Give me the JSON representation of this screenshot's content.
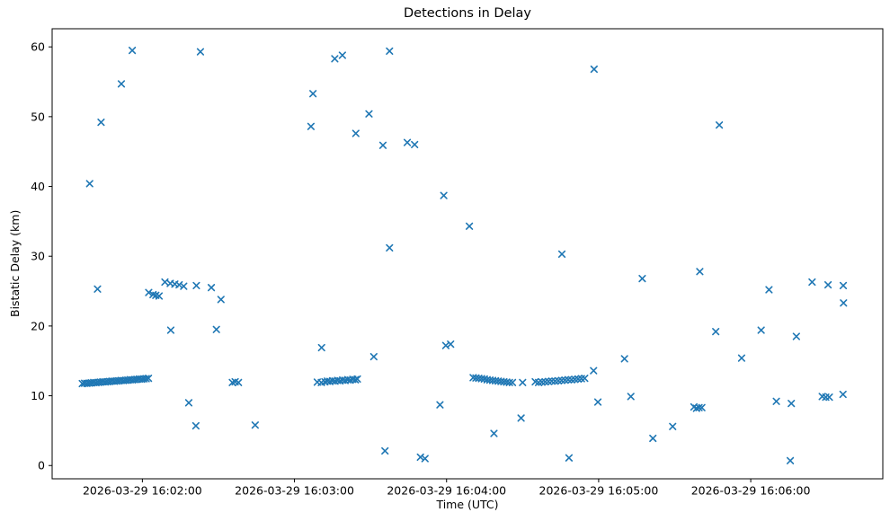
{
  "figure": {
    "title": "Detections in Delay",
    "xlabel": "Time (UTC)",
    "ylabel": "Bistatic Delay (km)"
  },
  "chart_data": {
    "type": "scatter",
    "title": "Detections in Delay",
    "xlabel": "Time (UTC)",
    "ylabel": "Bistatic Delay (km)",
    "marker": "x",
    "marker_color": "#1f77b4",
    "axes_edge_color": "#000000",
    "grid": false,
    "legend": "none",
    "x_axis": {
      "epoch_label": "2026-03-29 16:02:00",
      "unit": "seconds relative to 16:02:00 UTC",
      "range": [
        -35.6,
        292.1
      ],
      "tick_positions": [
        0,
        60,
        120,
        180,
        240
      ],
      "tick_labels": [
        "2026-03-29 16:02:00",
        "2026-03-29 16:03:00",
        "2026-03-29 16:04:00",
        "2026-03-29 16:05:00",
        "2026-03-29 16:06:00"
      ]
    },
    "y_axis": {
      "range": [
        -1.9,
        62.6
      ],
      "tick_positions": [
        0,
        10,
        20,
        30,
        40,
        50,
        60
      ],
      "tick_labels": [
        "0",
        "10",
        "20",
        "30",
        "40",
        "50",
        "60"
      ]
    },
    "points": [
      [
        -20.8,
        40.4
      ],
      [
        -16.3,
        49.2
      ],
      [
        -8.3,
        54.7
      ],
      [
        -4.0,
        59.5
      ],
      [
        -17.7,
        25.3
      ],
      [
        -23.7,
        11.75
      ],
      [
        -22.8,
        11.8
      ],
      [
        -21.9,
        11.78
      ],
      [
        -21.0,
        11.82
      ],
      [
        -20.1,
        11.85
      ],
      [
        -19.2,
        11.9
      ],
      [
        -18.3,
        11.88
      ],
      [
        -17.4,
        11.92
      ],
      [
        -16.5,
        11.95
      ],
      [
        -15.6,
        12.0
      ],
      [
        -14.7,
        11.98
      ],
      [
        -13.8,
        12.02
      ],
      [
        -12.9,
        12.05
      ],
      [
        -12.0,
        12.1
      ],
      [
        -11.1,
        12.08
      ],
      [
        -10.2,
        12.12
      ],
      [
        -9.3,
        12.15
      ],
      [
        -8.4,
        12.2
      ],
      [
        -7.5,
        12.18
      ],
      [
        -6.6,
        12.22
      ],
      [
        -5.7,
        12.25
      ],
      [
        -4.8,
        12.3
      ],
      [
        -3.9,
        12.28
      ],
      [
        -3.0,
        12.32
      ],
      [
        -2.1,
        12.35
      ],
      [
        -1.2,
        12.4
      ],
      [
        -0.3,
        12.38
      ],
      [
        0.6,
        12.42
      ],
      [
        1.5,
        12.45
      ],
      [
        2.4,
        12.5
      ],
      [
        22.9,
        59.3
      ],
      [
        2.5,
        24.8
      ],
      [
        4.2,
        24.5
      ],
      [
        5.3,
        24.4
      ],
      [
        6.6,
        24.3
      ],
      [
        8.9,
        26.3
      ],
      [
        11.0,
        26.1
      ],
      [
        12.8,
        26.0
      ],
      [
        14.5,
        25.9
      ],
      [
        16.3,
        25.7
      ],
      [
        21.3,
        25.8
      ],
      [
        27.2,
        25.5
      ],
      [
        31.0,
        23.8
      ],
      [
        11.2,
        19.4
      ],
      [
        29.2,
        19.5
      ],
      [
        18.3,
        9.0
      ],
      [
        21.1,
        5.7
      ],
      [
        44.5,
        5.8
      ],
      [
        35.5,
        11.9
      ],
      [
        36.6,
        12.0
      ],
      [
        37.9,
        11.9
      ],
      [
        66.5,
        48.6
      ],
      [
        67.3,
        53.3
      ],
      [
        75.9,
        58.3
      ],
      [
        78.9,
        58.8
      ],
      [
        97.5,
        59.4
      ],
      [
        89.4,
        50.4
      ],
      [
        84.2,
        47.6
      ],
      [
        94.9,
        45.9
      ],
      [
        104.5,
        46.3
      ],
      [
        107.4,
        46.0
      ],
      [
        118.9,
        38.7
      ],
      [
        97.5,
        31.2
      ],
      [
        70.7,
        16.9
      ],
      [
        91.3,
        15.6
      ],
      [
        119.7,
        17.2
      ],
      [
        121.6,
        17.4
      ],
      [
        117.4,
        8.7
      ],
      [
        95.7,
        2.1
      ],
      [
        109.7,
        1.2
      ],
      [
        111.5,
        1.0
      ],
      [
        69.0,
        11.95
      ],
      [
        70.6,
        11.9
      ],
      [
        72.0,
        12.0
      ],
      [
        73.0,
        12.1
      ],
      [
        74.0,
        12.05
      ],
      [
        75.0,
        12.15
      ],
      [
        76.0,
        12.1
      ],
      [
        77.0,
        12.2
      ],
      [
        78.0,
        12.15
      ],
      [
        79.0,
        12.25
      ],
      [
        80.0,
        12.2
      ],
      [
        81.0,
        12.3
      ],
      [
        82.0,
        12.25
      ],
      [
        83.0,
        12.35
      ],
      [
        84.0,
        12.3
      ],
      [
        84.8,
        12.4
      ],
      [
        129.0,
        34.3
      ],
      [
        165.5,
        30.3
      ],
      [
        178.2,
        56.8
      ],
      [
        130.5,
        12.6
      ],
      [
        131.6,
        12.55
      ],
      [
        132.7,
        12.5
      ],
      [
        133.8,
        12.45
      ],
      [
        134.9,
        12.4
      ],
      [
        136.0,
        12.3
      ],
      [
        137.1,
        12.25
      ],
      [
        138.2,
        12.2
      ],
      [
        139.3,
        12.15
      ],
      [
        140.4,
        12.1
      ],
      [
        141.5,
        12.05
      ],
      [
        142.6,
        12.0
      ],
      [
        143.7,
        11.95
      ],
      [
        144.8,
        11.9
      ],
      [
        146.0,
        11.9
      ],
      [
        150.0,
        11.9
      ],
      [
        155.0,
        12.0
      ],
      [
        156.3,
        11.9
      ],
      [
        157.6,
        11.95
      ],
      [
        158.9,
        12.0
      ],
      [
        160.2,
        12.05
      ],
      [
        161.5,
        12.1
      ],
      [
        162.8,
        12.1
      ],
      [
        164.1,
        12.15
      ],
      [
        165.4,
        12.2
      ],
      [
        166.7,
        12.25
      ],
      [
        168.0,
        12.3
      ],
      [
        169.3,
        12.3
      ],
      [
        170.6,
        12.35
      ],
      [
        171.9,
        12.4
      ],
      [
        173.2,
        12.45
      ],
      [
        174.5,
        12.5
      ],
      [
        178.0,
        13.6
      ],
      [
        179.7,
        9.1
      ],
      [
        168.3,
        1.1
      ],
      [
        149.4,
        6.8
      ],
      [
        138.7,
        4.6
      ],
      [
        197.2,
        26.8
      ],
      [
        190.2,
        15.3
      ],
      [
        192.7,
        9.9
      ],
      [
        209.2,
        5.6
      ],
      [
        201.4,
        3.9
      ],
      [
        219.9,
        27.8
      ],
      [
        227.6,
        48.8
      ],
      [
        226.2,
        19.2
      ],
      [
        236.4,
        15.4
      ],
      [
        217.6,
        8.4
      ],
      [
        218.6,
        8.2
      ],
      [
        219.6,
        8.3
      ],
      [
        220.7,
        8.3
      ],
      [
        247.2,
        25.2
      ],
      [
        264.2,
        26.3
      ],
      [
        270.5,
        25.9
      ],
      [
        276.5,
        25.8
      ],
      [
        276.6,
        23.3
      ],
      [
        244.1,
        19.4
      ],
      [
        258.0,
        18.5
      ],
      [
        250.1,
        9.2
      ],
      [
        256.0,
        8.9
      ],
      [
        268.2,
        9.9
      ],
      [
        269.6,
        9.8
      ],
      [
        271.0,
        9.8
      ],
      [
        276.4,
        10.2
      ],
      [
        255.6,
        0.7
      ]
    ]
  }
}
